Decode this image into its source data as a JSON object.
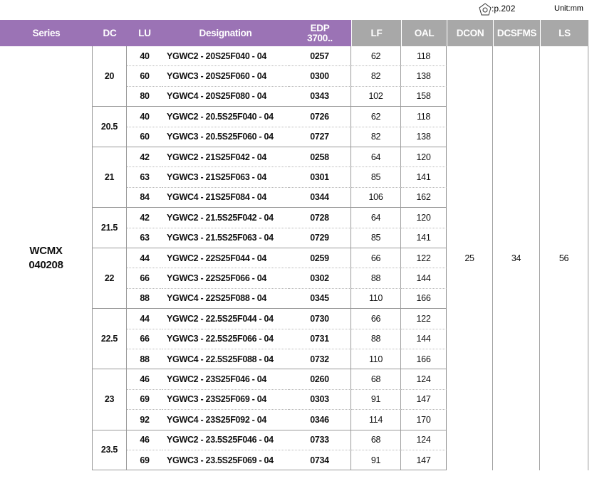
{
  "header": {
    "reference": ":p.202",
    "unit": "Unit:mm"
  },
  "table": {
    "columns": [
      "Series",
      "DC",
      "LU",
      "Designation",
      [
        "EDP",
        "3700.."
      ],
      "LF",
      "OAL",
      "DCON",
      "DCSFMS",
      "LS"
    ],
    "series": [
      "WCMX",
      "040208"
    ],
    "dcon": 25,
    "dcsfms": 34,
    "ls": 56,
    "groups": [
      {
        "dc": 20,
        "rows": [
          [
            40,
            "YGWC2 - 20S25F040 - 04",
            "0257",
            62,
            118
          ],
          [
            60,
            "YGWC3 - 20S25F060 - 04",
            "0300",
            82,
            138
          ],
          [
            80,
            "YGWC4 - 20S25F080 - 04",
            "0343",
            102,
            158
          ]
        ]
      },
      {
        "dc": 20.5,
        "rows": [
          [
            40,
            "YGWC2 - 20.5S25F040 - 04",
            "0726",
            62,
            118
          ],
          [
            60,
            "YGWC3 - 20.5S25F060 - 04",
            "0727",
            82,
            138
          ]
        ]
      },
      {
        "dc": 21,
        "rows": [
          [
            42,
            "YGWC2 - 21S25F042 - 04",
            "0258",
            64,
            120
          ],
          [
            63,
            "YGWC3 - 21S25F063 - 04",
            "0301",
            85,
            141
          ],
          [
            84,
            "YGWC4 - 21S25F084 - 04",
            "0344",
            106,
            162
          ]
        ]
      },
      {
        "dc": 21.5,
        "rows": [
          [
            42,
            "YGWC2 - 21.5S25F042 - 04",
            "0728",
            64,
            120
          ],
          [
            63,
            "YGWC3 - 21.5S25F063 - 04",
            "0729",
            85,
            141
          ]
        ]
      },
      {
        "dc": 22,
        "rows": [
          [
            44,
            "YGWC2 - 22S25F044 - 04",
            "0259",
            66,
            122
          ],
          [
            66,
            "YGWC3 - 22S25F066 - 04",
            "0302",
            88,
            144
          ],
          [
            88,
            "YGWC4 - 22S25F088 - 04",
            "0345",
            110,
            166
          ]
        ]
      },
      {
        "dc": 22.5,
        "rows": [
          [
            44,
            "YGWC2 - 22.5S25F044 - 04",
            "0730",
            66,
            122
          ],
          [
            66,
            "YGWC3 - 22.5S25F066 - 04",
            "0731",
            88,
            144
          ],
          [
            88,
            "YGWC4 - 22.5S25F088 - 04",
            "0732",
            110,
            166
          ]
        ]
      },
      {
        "dc": 23,
        "rows": [
          [
            46,
            "YGWC2 - 23S25F046 - 04",
            "0260",
            68,
            124
          ],
          [
            69,
            "YGWC3 - 23S25F069 - 04",
            "0303",
            91,
            147
          ],
          [
            92,
            "YGWC4 - 23S25F092 - 04",
            "0346",
            114,
            170
          ]
        ]
      },
      {
        "dc": 23.5,
        "rows": [
          [
            46,
            "YGWC2 - 23.5S25F046 - 04",
            "0733",
            68,
            124
          ],
          [
            69,
            "YGWC3 - 23.5S25F069 - 04",
            "0734",
            91,
            147
          ]
        ]
      }
    ]
  }
}
